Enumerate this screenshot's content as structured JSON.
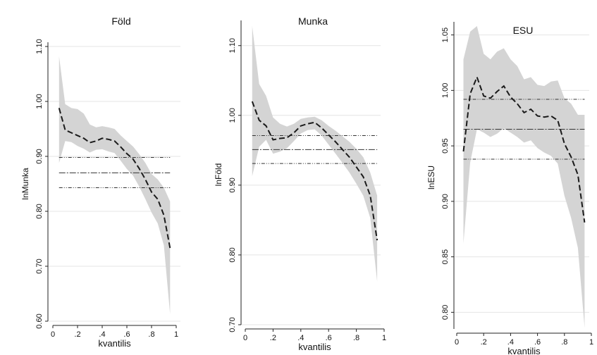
{
  "chart_data": [
    {
      "type": "line",
      "title": "Föld",
      "xlabel": "kvantilis",
      "ylabel": "lnMunka",
      "xlim": [
        0,
        1
      ],
      "ylim": [
        0.6,
        1.1
      ],
      "xticks": [
        0,
        0.2,
        0.4,
        0.6,
        0.8,
        1
      ],
      "xtick_labels": [
        "0",
        ".2",
        ".4",
        ".6",
        ".8",
        "1"
      ],
      "yticks": [
        0.6,
        0.7,
        0.8,
        0.9,
        1.0,
        1.1
      ],
      "ytick_labels": [
        "0.60",
        "0.70",
        "0.80",
        "0.90",
        "1.00",
        "1.10"
      ],
      "grid": true,
      "series": [
        {
          "style": "quantile-estimate",
          "x": [
            0.05,
            0.1,
            0.15,
            0.2,
            0.25,
            0.3,
            0.35,
            0.4,
            0.45,
            0.5,
            0.55,
            0.6,
            0.65,
            0.7,
            0.75,
            0.8,
            0.85,
            0.9,
            0.95
          ],
          "y": [
            0.988,
            0.948,
            0.943,
            0.938,
            0.933,
            0.925,
            0.928,
            0.933,
            0.931,
            0.928,
            0.917,
            0.905,
            0.895,
            0.878,
            0.858,
            0.835,
            0.822,
            0.793,
            0.733
          ],
          "lower": [
            0.888,
            0.928,
            0.926,
            0.919,
            0.914,
            0.907,
            0.912,
            0.913,
            0.909,
            0.906,
            0.892,
            0.877,
            0.865,
            0.845,
            0.822,
            0.798,
            0.778,
            0.738,
            0.613
          ],
          "upper": [
            1.082,
            0.995,
            0.988,
            0.986,
            0.978,
            0.958,
            0.953,
            0.955,
            0.953,
            0.95,
            0.938,
            0.928,
            0.918,
            0.904,
            0.888,
            0.868,
            0.858,
            0.843,
            0.818
          ]
        },
        {
          "style": "ols-upper",
          "value": 0.898
        },
        {
          "style": "ols-estimate",
          "value": 0.87
        },
        {
          "style": "ols-lower",
          "value": 0.843
        }
      ],
      "colors": {
        "band": "#d4d4d4",
        "line": "#1a1a1a",
        "grid": "#e4e4e4"
      }
    },
    {
      "type": "line",
      "title": "Munka",
      "xlabel": "kvantilis",
      "ylabel": "lnFöld",
      "xlim": [
        0,
        1
      ],
      "ylim": [
        0.7,
        1.13
      ],
      "xticks": [
        0,
        0.2,
        0.4,
        0.6,
        0.8,
        1
      ],
      "xtick_labels": [
        "0",
        ".2",
        ".4",
        ".6",
        ".8",
        "1"
      ],
      "yticks": [
        0.7,
        0.8,
        0.9,
        1.0,
        1.1
      ],
      "ytick_labels": [
        "0.70",
        "0.80",
        "0.90",
        "1.00",
        "1.10"
      ],
      "grid": true,
      "series": [
        {
          "style": "quantile-estimate",
          "x": [
            0.05,
            0.1,
            0.15,
            0.2,
            0.25,
            0.3,
            0.35,
            0.4,
            0.45,
            0.5,
            0.55,
            0.6,
            0.65,
            0.7,
            0.75,
            0.8,
            0.85,
            0.9,
            0.95
          ],
          "y": [
            1.02,
            0.993,
            0.985,
            0.965,
            0.967,
            0.968,
            0.975,
            0.985,
            0.988,
            0.99,
            0.982,
            0.972,
            0.962,
            0.951,
            0.94,
            0.926,
            0.912,
            0.885,
            0.821
          ],
          "lower": [
            0.913,
            0.955,
            0.965,
            0.945,
            0.948,
            0.953,
            0.963,
            0.974,
            0.979,
            0.98,
            0.971,
            0.958,
            0.945,
            0.932,
            0.918,
            0.902,
            0.885,
            0.853,
            0.762
          ],
          "upper": [
            1.128,
            1.045,
            1.028,
            0.997,
            0.988,
            0.984,
            0.988,
            0.995,
            0.997,
            0.998,
            0.993,
            0.985,
            0.978,
            0.97,
            0.962,
            0.952,
            0.94,
            0.918,
            0.885
          ]
        },
        {
          "style": "ols-upper",
          "value": 0.971
        },
        {
          "style": "ols-estimate",
          "value": 0.951
        },
        {
          "style": "ols-lower",
          "value": 0.931
        }
      ],
      "colors": {
        "band": "#d4d4d4",
        "line": "#1a1a1a",
        "grid": "#e4e4e4"
      }
    },
    {
      "type": "line",
      "title": "ESU",
      "xlabel": "kvantilis",
      "ylabel": "lnESU",
      "xlim": [
        0,
        1
      ],
      "ylim": [
        0.785,
        1.058
      ],
      "xticks": [
        0,
        0.2,
        0.4,
        0.6,
        0.8,
        1
      ],
      "xtick_labels": [
        "0",
        ".2",
        ".4",
        ".6",
        ".8",
        "1"
      ],
      "yticks": [
        0.8,
        0.85,
        0.9,
        0.95,
        1.0,
        1.05
      ],
      "ytick_labels": [
        "0.80",
        "0.85",
        "0.90",
        "0.95",
        "1.00",
        "1.05"
      ],
      "grid": true,
      "series": [
        {
          "style": "quantile-estimate",
          "x": [
            0.05,
            0.1,
            0.15,
            0.2,
            0.25,
            0.3,
            0.35,
            0.4,
            0.45,
            0.5,
            0.55,
            0.6,
            0.65,
            0.7,
            0.75,
            0.8,
            0.85,
            0.9,
            0.95
          ],
          "y": [
            0.945,
            0.997,
            1.012,
            0.995,
            0.993,
            0.999,
            1.004,
            0.994,
            0.988,
            0.98,
            0.983,
            0.977,
            0.976,
            0.977,
            0.973,
            0.952,
            0.94,
            0.924,
            0.881
          ],
          "lower": [
            0.862,
            0.935,
            0.965,
            0.962,
            0.958,
            0.961,
            0.966,
            0.962,
            0.958,
            0.953,
            0.955,
            0.948,
            0.944,
            0.941,
            0.934,
            0.905,
            0.885,
            0.858,
            0.786
          ],
          "upper": [
            1.028,
            1.053,
            1.058,
            1.033,
            1.028,
            1.035,
            1.038,
            1.028,
            1.022,
            1.01,
            1.012,
            1.005,
            1.004,
            1.008,
            1.009,
            0.993,
            0.988,
            0.978,
            0.978
          ]
        },
        {
          "style": "ols-upper",
          "value": 0.992
        },
        {
          "style": "ols-estimate",
          "value": 0.965
        },
        {
          "style": "ols-lower",
          "value": 0.938
        }
      ],
      "colors": {
        "band": "#d4d4d4",
        "line": "#1a1a1a",
        "grid": "#e4e4e4"
      }
    }
  ]
}
